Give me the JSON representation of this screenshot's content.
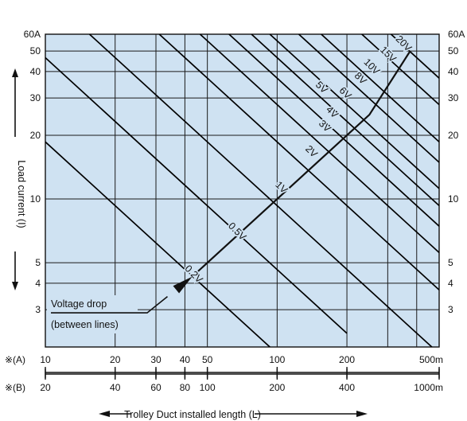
{
  "chart_data": {
    "type": "line",
    "log_scale": {
      "x": true,
      "y": true
    },
    "xlim": [
      10,
      500
    ],
    "ylim": [
      2,
      60
    ],
    "background_color": "#cfe2f2",
    "line_color": "#000000",
    "grid": true,
    "y_ticks": [
      3,
      4,
      5,
      10,
      20,
      30,
      40,
      50,
      60
    ],
    "y_tick_labels_left": [
      "3",
      "4",
      "5",
      "10",
      "20",
      "30",
      "40",
      "50",
      "60A"
    ],
    "y_tick_labels_right": [
      "3",
      "4",
      "5",
      "10",
      "20",
      "30",
      "40",
      "50",
      "60A"
    ],
    "x_grid": [
      20,
      30,
      40,
      50,
      100,
      200,
      300,
      400
    ],
    "y_grid": [
      3,
      4,
      5,
      10,
      20,
      30,
      40,
      50
    ],
    "y_axis_label": "Load current (I)",
    "x_axis_label": "Trolley Duct installed length (L)",
    "scale_a": {
      "marker": "※(A)",
      "ticks": [
        10,
        20,
        30,
        40,
        50,
        100,
        200,
        500
      ],
      "labels": [
        "10",
        "20",
        "30",
        "40",
        "50",
        "100",
        "200",
        "500m"
      ]
    },
    "scale_b": {
      "marker": "※(B)",
      "ticks": [
        10,
        20,
        30,
        40,
        50,
        100,
        200,
        500
      ],
      "labels": [
        "20",
        "40",
        "60",
        "80",
        "100",
        "200",
        "400",
        "1000m"
      ]
    },
    "series": [
      {
        "name": "0.2V",
        "points": [
          [
            10,
            18.6
          ],
          [
            100,
            1.86
          ]
        ]
      },
      {
        "name": "0.5V",
        "points": [
          [
            10,
            46.5
          ],
          [
            200,
            2.32
          ]
        ]
      },
      {
        "name": "1V",
        "points": [
          [
            15.5,
            60
          ],
          [
            500,
            1.86
          ]
        ]
      },
      {
        "name": "2V",
        "points": [
          [
            31,
            60
          ],
          [
            500,
            3.72
          ]
        ]
      },
      {
        "name": "3V",
        "points": [
          [
            46.5,
            60
          ],
          [
            500,
            5.58
          ]
        ]
      },
      {
        "name": "4V",
        "points": [
          [
            62,
            60
          ],
          [
            500,
            7.44
          ]
        ]
      },
      {
        "name": "5V",
        "points": [
          [
            77.5,
            60
          ],
          [
            500,
            9.3
          ]
        ]
      },
      {
        "name": "6V",
        "points": [
          [
            93,
            60
          ],
          [
            500,
            11.2
          ]
        ]
      },
      {
        "name": "8V",
        "points": [
          [
            124,
            60
          ],
          [
            500,
            14.9
          ]
        ]
      },
      {
        "name": "10V",
        "points": [
          [
            155,
            60
          ],
          [
            500,
            18.6
          ]
        ]
      },
      {
        "name": "15V",
        "points": [
          [
            232,
            60
          ],
          [
            500,
            27.9
          ]
        ]
      },
      {
        "name": "20V",
        "points": [
          [
            310,
            60
          ],
          [
            500,
            37.2
          ]
        ]
      }
    ],
    "line_labels": [
      {
        "text": "0.2V",
        "x": 43.5,
        "y": 4.4
      },
      {
        "text": "0.5V",
        "x": 67,
        "y": 7.0
      },
      {
        "text": "1V",
        "x": 104,
        "y": 11.3
      },
      {
        "text": "2V",
        "x": 140,
        "y": 16.7
      },
      {
        "text": "3V",
        "x": 160,
        "y": 22.0
      },
      {
        "text": "4V",
        "x": 172,
        "y": 25.6
      },
      {
        "text": "5V",
        "x": 155,
        "y": 33.5
      },
      {
        "text": "6V",
        "x": 196,
        "y": 31.5
      },
      {
        "text": "8V",
        "x": 228,
        "y": 37.0
      },
      {
        "text": "10V",
        "x": 255,
        "y": 42.0
      },
      {
        "text": "15V",
        "x": 300,
        "y": 48.0
      },
      {
        "text": "20V",
        "x": 350,
        "y": 54.0
      }
    ],
    "operating_path": [
      [
        44,
        4.4
      ],
      [
        250,
        25
      ],
      [
        375,
        50
      ]
    ],
    "annotation": {
      "line1": "Voltage drop",
      "line2": "(between lines)",
      "arrow_from": [
        27.5,
        2.9
      ],
      "arrow_to": [
        43,
        4.3
      ]
    }
  }
}
